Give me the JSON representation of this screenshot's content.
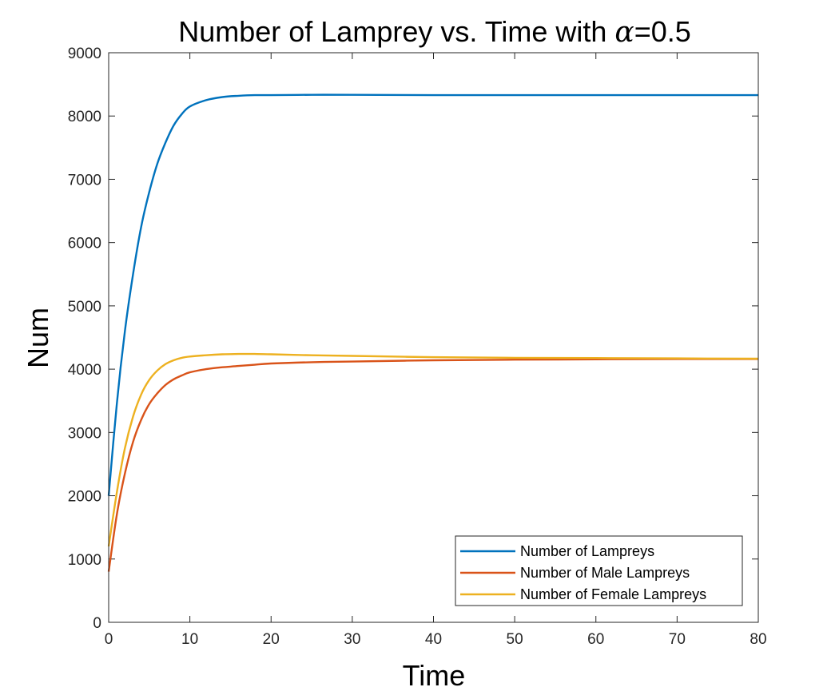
{
  "chart_data": {
    "type": "line",
    "title_prefix": "Number of Lamprey vs. Time with ",
    "title_symbol": "α",
    "title_suffix": "=0.5",
    "xlabel": "Time",
    "ylabel": "Num",
    "xlim": [
      0,
      80
    ],
    "ylim": [
      0,
      9000
    ],
    "xticks": [
      "0",
      "10",
      "20",
      "30",
      "40",
      "50",
      "60",
      "70",
      "80"
    ],
    "yticks": [
      "0",
      "1000",
      "2000",
      "3000",
      "4000",
      "5000",
      "6000",
      "7000",
      "8000",
      "9000"
    ],
    "grid": false,
    "legend_position": "bottom-right",
    "series": [
      {
        "name": "Number of Lamprey",
        "legend_label": "Number of Lampreys",
        "color": "#0072BD",
        "x": [
          0,
          1,
          2,
          3,
          4,
          5,
          6,
          7,
          8,
          9,
          10,
          12,
          14,
          16,
          18,
          20,
          25,
          30,
          40,
          50,
          60,
          70,
          80
        ],
        "y": [
          2000,
          3450,
          4600,
          5500,
          6250,
          6800,
          7250,
          7580,
          7850,
          8030,
          8150,
          8250,
          8300,
          8320,
          8330,
          8330,
          8335,
          8335,
          8330,
          8330,
          8330,
          8330,
          8330
        ]
      },
      {
        "name": "Number of Male Lamprey",
        "legend_label": "Number of Male Lampreys",
        "color": "#D95319",
        "x": [
          0,
          1,
          2,
          3,
          4,
          5,
          6,
          7,
          8,
          9,
          10,
          12,
          14,
          16,
          18,
          20,
          25,
          30,
          40,
          50,
          60,
          70,
          80
        ],
        "y": [
          800,
          1700,
          2350,
          2850,
          3200,
          3450,
          3620,
          3750,
          3840,
          3900,
          3950,
          4000,
          4030,
          4050,
          4070,
          4090,
          4110,
          4120,
          4140,
          4150,
          4155,
          4160,
          4160
        ]
      },
      {
        "name": "Number of Female Lamprey",
        "legend_label": "Number of Female Lampreys",
        "color": "#EDB120",
        "x": [
          0,
          1,
          2,
          3,
          4,
          5,
          6,
          7,
          8,
          9,
          10,
          12,
          14,
          16,
          18,
          20,
          25,
          30,
          40,
          50,
          60,
          70,
          80
        ],
        "y": [
          1200,
          2050,
          2750,
          3250,
          3600,
          3830,
          3980,
          4080,
          4140,
          4180,
          4200,
          4220,
          4235,
          4240,
          4240,
          4235,
          4220,
          4210,
          4190,
          4180,
          4175,
          4170,
          4165
        ]
      }
    ]
  }
}
